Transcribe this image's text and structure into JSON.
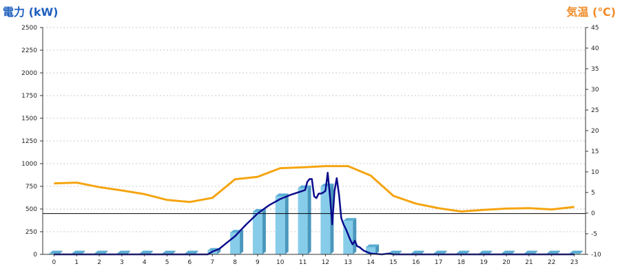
{
  "chart_data": {
    "type": "bar",
    "left_axis_label": "電力 (kW)",
    "right_axis_label": "気温 (℃)",
    "categories": [
      "0",
      "1",
      "2",
      "3",
      "4",
      "5",
      "6",
      "7",
      "8",
      "9",
      "10",
      "11",
      "12",
      "13",
      "14",
      "15",
      "16",
      "17",
      "18",
      "19",
      "20",
      "21",
      "22",
      "23"
    ],
    "ylim_left": [
      0,
      2500
    ],
    "yticks_left": [
      0,
      250,
      500,
      750,
      1000,
      1250,
      1500,
      1750,
      2000,
      2250,
      2500
    ],
    "ylim_right": [
      -10,
      45
    ],
    "yticks_right": [
      -10,
      -5,
      0,
      5,
      10,
      15,
      20,
      25,
      30,
      35,
      40,
      45
    ],
    "grid": true,
    "reference_line_left": 450,
    "colors": {
      "bars": "#87cdea",
      "bar_side": "#4a97bd",
      "power_line": "#0b0b8c",
      "temperature_line": "#f5a40f",
      "left_title": "#1f5fbf",
      "right_title": "#f08a24"
    },
    "bar_values": [
      10,
      10,
      10,
      10,
      10,
      10,
      10,
      40,
      240,
      470,
      640,
      730,
      750,
      370,
      80,
      10,
      10,
      10,
      10,
      10,
      10,
      10,
      10,
      10
    ],
    "power_line": {
      "x": [
        0,
        1,
        2,
        3,
        4,
        5,
        6,
        6.8,
        7,
        7.3,
        7.6,
        8,
        8.5,
        9,
        9.5,
        10,
        10.5,
        11,
        11.1,
        11.2,
        11.3,
        11.4,
        11.5,
        11.6,
        11.7,
        11.8,
        11.9,
        12,
        12.1,
        12.2,
        12.3,
        12.4,
        12.5,
        12.6,
        12.7,
        12.8,
        12.9,
        13,
        13.1,
        13.2,
        13.3,
        13.4,
        13.5,
        13.6,
        13.7,
        13.8,
        13.9,
        14,
        14.2,
        14.5,
        14.8,
        15,
        15.5,
        16,
        17,
        18,
        19,
        20,
        21,
        22,
        23
      ],
      "y": [
        0,
        0,
        0,
        0,
        0,
        0,
        0,
        0,
        30,
        60,
        120,
        200,
        330,
        450,
        540,
        610,
        660,
        700,
        710,
        800,
        830,
        830,
        640,
        620,
        670,
        670,
        680,
        700,
        900,
        640,
        330,
        700,
        840,
        660,
        400,
        330,
        280,
        220,
        160,
        110,
        150,
        90,
        80,
        60,
        40,
        30,
        20,
        10,
        5,
        0,
        10,
        0,
        0,
        0,
        0,
        0,
        0,
        0,
        0,
        0,
        0
      ]
    },
    "temperature": [
      7.2,
      7.4,
      6.3,
      5.5,
      4.6,
      3.2,
      2.7,
      3.7,
      8.2,
      8.8,
      10.9,
      11.1,
      11.4,
      11.4,
      9.1,
      4.2,
      2.3,
      1.2,
      0.4,
      0.8,
      1.1,
      1.2,
      0.9,
      1.5
    ]
  }
}
